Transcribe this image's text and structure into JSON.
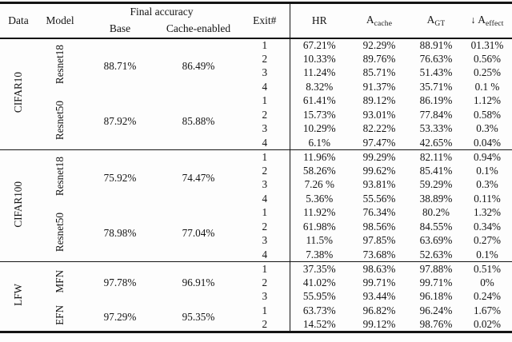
{
  "colors": {
    "background": "#fdfdfd",
    "text": "#141414",
    "rule": "#141414"
  },
  "table": {
    "header": {
      "data": "Data",
      "model": "Model",
      "final_accuracy": "Final accuracy",
      "base": "Base",
      "cache_enabled": "Cache-enabled",
      "exit": "Exit#",
      "hr": "HR",
      "a_cache": {
        "main": "A",
        "sub": "cache"
      },
      "a_gt": {
        "main": "A",
        "sub": "GT"
      },
      "a_effect": {
        "arrow": "↓",
        "main": "A",
        "sub": "effect"
      }
    },
    "sections": [
      {
        "dataset": "CIFAR10",
        "groups": [
          {
            "model": "Resnet18",
            "base": "88.71%",
            "cache_enabled": "86.49%",
            "rows": [
              {
                "exit": "1",
                "hr": "67.21%",
                "a_cache": "92.29%",
                "a_gt": "88.91%",
                "a_effect": "01.31%"
              },
              {
                "exit": "2",
                "hr": "10.33%",
                "a_cache": "89.76%",
                "a_gt": "76.63%",
                "a_effect": "0.56%"
              },
              {
                "exit": "3",
                "hr": "11.24%",
                "a_cache": "85.71%",
                "a_gt": "51.43%",
                "a_effect": "0.25%"
              },
              {
                "exit": "4",
                "hr": "8.32%",
                "a_cache": "91.37%",
                "a_gt": "35.71%",
                "a_effect": "0.1 %"
              }
            ]
          },
          {
            "model": "Resnet50",
            "base": "87.92%",
            "cache_enabled": "85.88%",
            "rows": [
              {
                "exit": "1",
                "hr": "61.41%",
                "a_cache": "89.12%",
                "a_gt": "86.19%",
                "a_effect": "1.12%"
              },
              {
                "exit": "2",
                "hr": "15.73%",
                "a_cache": "93.01%",
                "a_gt": "77.84%",
                "a_effect": "0.58%"
              },
              {
                "exit": "3",
                "hr": "10.29%",
                "a_cache": "82.22%",
                "a_gt": "53.33%",
                "a_effect": "0.3%"
              },
              {
                "exit": "4",
                "hr": "6.1%",
                "a_cache": "97.47%",
                "a_gt": "42.65%",
                "a_effect": "0.04%"
              }
            ]
          }
        ]
      },
      {
        "dataset": "CIFAR100",
        "groups": [
          {
            "model": "Resnet18",
            "base": "75.92%",
            "cache_enabled": "74.47%",
            "rows": [
              {
                "exit": "1",
                "hr": "11.96%",
                "a_cache": "99.29%",
                "a_gt": "82.11%",
                "a_effect": "0.94%"
              },
              {
                "exit": "2",
                "hr": "58.26%",
                "a_cache": "99.62%",
                "a_gt": "85.41%",
                "a_effect": "0.1%"
              },
              {
                "exit": "3",
                "hr": "7.26 %",
                "a_cache": "93.81%",
                "a_gt": "59.29%",
                "a_effect": "0.3%"
              },
              {
                "exit": "4",
                "hr": "5.36%",
                "a_cache": "55.56%",
                "a_gt": "38.89%",
                "a_effect": "0.11%"
              }
            ]
          },
          {
            "model": "Resnet50",
            "base": "78.98%",
            "cache_enabled": "77.04%",
            "rows": [
              {
                "exit": "1",
                "hr": "11.92%",
                "a_cache": "76.34%",
                "a_gt": "80.2%",
                "a_effect": "1.32%"
              },
              {
                "exit": "2",
                "hr": "61.98%",
                "a_cache": "98.56%",
                "a_gt": "84.55%",
                "a_effect": "0.34%"
              },
              {
                "exit": "3",
                "hr": "11.5%",
                "a_cache": "97.85%",
                "a_gt": "63.69%",
                "a_effect": "0.27%"
              },
              {
                "exit": "4",
                "hr": "7.38%",
                "a_cache": "73.68%",
                "a_gt": "52.63%",
                "a_effect": "0.1%"
              }
            ]
          }
        ]
      },
      {
        "dataset": "LFW",
        "groups": [
          {
            "model": "MFN",
            "base": "97.78%",
            "cache_enabled": "96.91%",
            "rows": [
              {
                "exit": "1",
                "hr": "37.35%",
                "a_cache": "98.63%",
                "a_gt": "97.88%",
                "a_effect": "0.51%"
              },
              {
                "exit": "2",
                "hr": "41.02%",
                "a_cache": "99.71%",
                "a_gt": "99.71%",
                "a_effect": "0%"
              },
              {
                "exit": "3",
                "hr": "55.95%",
                "a_cache": "93.44%",
                "a_gt": "96.18%",
                "a_effect": "0.24%"
              }
            ]
          },
          {
            "model": "EFN",
            "base": "97.29%",
            "cache_enabled": "95.35%",
            "rows": [
              {
                "exit": "1",
                "hr": "63.73%",
                "a_cache": "96.82%",
                "a_gt": "96.24%",
                "a_effect": "1.67%"
              },
              {
                "exit": "2",
                "hr": "14.52%",
                "a_cache": "99.12%",
                "a_gt": "98.76%",
                "a_effect": "0.02%"
              }
            ]
          }
        ]
      }
    ]
  }
}
